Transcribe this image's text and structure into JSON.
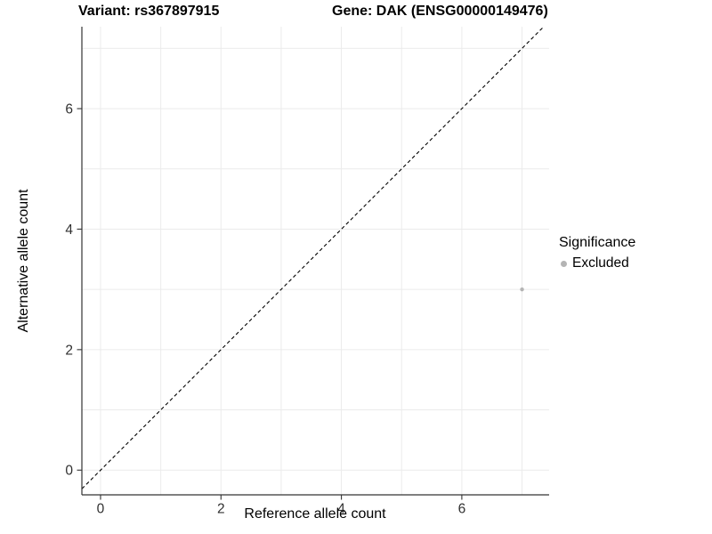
{
  "chart_data": {
    "type": "scatter",
    "titles": {
      "left": "Variant: rs367897915",
      "right": "Gene: DAK (ENSG00000149476)"
    },
    "xlabel": "Reference allele count",
    "ylabel": "Alternative allele count",
    "xlim": [
      -0.31,
      7.45
    ],
    "ylim": [
      -0.41,
      7.36
    ],
    "x_ticks": [
      0,
      2,
      4,
      6
    ],
    "y_ticks": [
      0,
      2,
      4,
      6
    ],
    "gridlines_every": 1,
    "grid": "on",
    "identity_line": {
      "equation": "y = x",
      "style": "dashed"
    },
    "series": [
      {
        "name": "Excluded",
        "color": "#b4b4b4",
        "points": [
          {
            "x": 7,
            "y": 3
          }
        ]
      }
    ],
    "legend": {
      "title": "Significance",
      "position": "right",
      "items": [
        {
          "label": "Excluded",
          "color": "#b4b4b4"
        }
      ]
    }
  },
  "colors": {
    "background": "#ffffff",
    "grid": "#ebebeb",
    "axis_line": "#333333",
    "tick_label": "#303030",
    "identity_line": "#000000",
    "point": "#b4b4b4"
  }
}
